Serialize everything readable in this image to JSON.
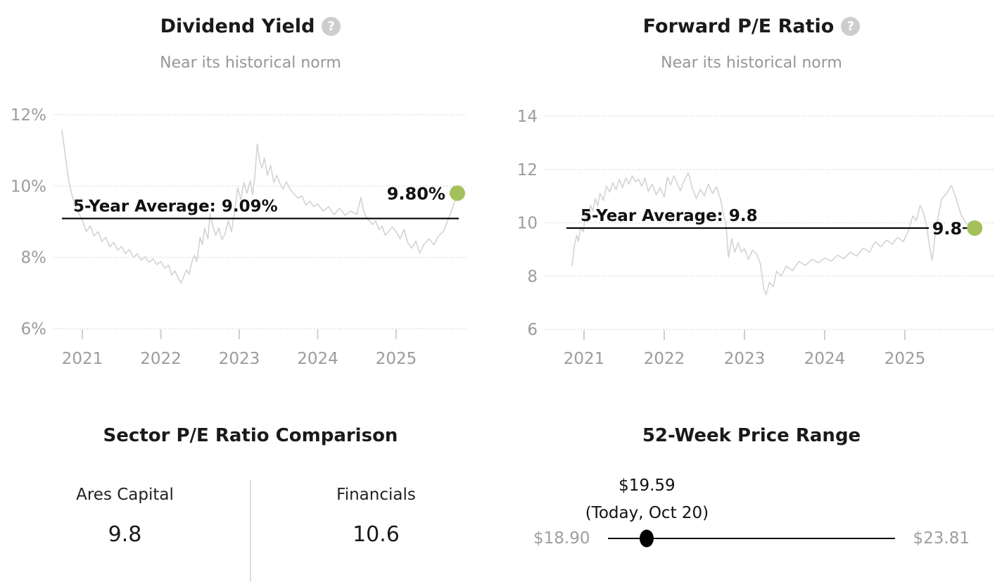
{
  "colors": {
    "accent_green": "#a4c05a",
    "series_line": "#d3d3d3",
    "grid_line": "#d7d7d7",
    "axis_label": "#9c9c9c",
    "avg_line": "#000000"
  },
  "chart_data": [
    {
      "type": "line",
      "title": "Dividend Yield",
      "subtitle": "Near its historical norm",
      "help_icon": "question-mark-icon",
      "ylim": [
        6,
        12
      ],
      "y_ticks": [
        {
          "value": 12,
          "label": "12%"
        },
        {
          "value": 10,
          "label": "10%"
        },
        {
          "value": 8,
          "label": "8%"
        },
        {
          "value": 6,
          "label": "6%"
        }
      ],
      "x_ticks": [
        2021,
        2022,
        2023,
        2024,
        2025
      ],
      "average": {
        "value": 9.09,
        "label": "5-Year Average: 9.09%"
      },
      "current": {
        "value": 9.8,
        "label": "9.80%"
      },
      "series": [
        [
          2020.74,
          11.56
        ],
        [
          2020.78,
          10.9
        ],
        [
          2020.82,
          10.25
        ],
        [
          2020.86,
          9.82
        ],
        [
          2020.9,
          9.5
        ],
        [
          2020.95,
          9.26
        ],
        [
          2021.0,
          9.06
        ],
        [
          2021.05,
          8.72
        ],
        [
          2021.1,
          8.88
        ],
        [
          2021.15,
          8.6
        ],
        [
          2021.2,
          8.72
        ],
        [
          2021.25,
          8.45
        ],
        [
          2021.3,
          8.56
        ],
        [
          2021.35,
          8.3
        ],
        [
          2021.4,
          8.42
        ],
        [
          2021.45,
          8.2
        ],
        [
          2021.5,
          8.3
        ],
        [
          2021.55,
          8.1
        ],
        [
          2021.6,
          8.22
        ],
        [
          2021.65,
          8.0
        ],
        [
          2021.7,
          8.1
        ],
        [
          2021.75,
          7.92
        ],
        [
          2021.8,
          8.02
        ],
        [
          2021.85,
          7.86
        ],
        [
          2021.9,
          7.96
        ],
        [
          2021.95,
          7.8
        ],
        [
          2022.0,
          7.88
        ],
        [
          2022.05,
          7.7
        ],
        [
          2022.1,
          7.78
        ],
        [
          2022.14,
          7.5
        ],
        [
          2022.18,
          7.62
        ],
        [
          2022.22,
          7.42
        ],
        [
          2022.26,
          7.28
        ],
        [
          2022.3,
          7.5
        ],
        [
          2022.33,
          7.65
        ],
        [
          2022.36,
          7.52
        ],
        [
          2022.4,
          7.9
        ],
        [
          2022.43,
          8.05
        ],
        [
          2022.46,
          7.88
        ],
        [
          2022.5,
          8.56
        ],
        [
          2022.53,
          8.36
        ],
        [
          2022.56,
          8.82
        ],
        [
          2022.6,
          8.52
        ],
        [
          2022.63,
          9.22
        ],
        [
          2022.66,
          8.9
        ],
        [
          2022.7,
          8.62
        ],
        [
          2022.74,
          8.82
        ],
        [
          2022.78,
          8.5
        ],
        [
          2022.82,
          8.66
        ],
        [
          2022.86,
          9.02
        ],
        [
          2022.9,
          8.72
        ],
        [
          2022.94,
          9.28
        ],
        [
          2022.98,
          9.95
        ],
        [
          2023.02,
          9.62
        ],
        [
          2023.06,
          10.1
        ],
        [
          2023.1,
          9.8
        ],
        [
          2023.14,
          10.15
        ],
        [
          2023.17,
          9.75
        ],
        [
          2023.2,
          10.3
        ],
        [
          2023.23,
          11.18
        ],
        [
          2023.26,
          10.7
        ],
        [
          2023.29,
          10.5
        ],
        [
          2023.32,
          10.78
        ],
        [
          2023.36,
          10.3
        ],
        [
          2023.4,
          10.58
        ],
        [
          2023.44,
          10.1
        ],
        [
          2023.48,
          10.3
        ],
        [
          2023.52,
          10.06
        ],
        [
          2023.56,
          9.92
        ],
        [
          2023.6,
          10.12
        ],
        [
          2023.65,
          9.9
        ],
        [
          2023.7,
          9.78
        ],
        [
          2023.75,
          9.66
        ],
        [
          2023.8,
          9.72
        ],
        [
          2023.85,
          9.46
        ],
        [
          2023.9,
          9.58
        ],
        [
          2023.95,
          9.42
        ],
        [
          2024.0,
          9.5
        ],
        [
          2024.07,
          9.3
        ],
        [
          2024.14,
          9.42
        ],
        [
          2024.21,
          9.2
        ],
        [
          2024.28,
          9.38
        ],
        [
          2024.35,
          9.18
        ],
        [
          2024.42,
          9.3
        ],
        [
          2024.5,
          9.2
        ],
        [
          2024.55,
          9.68
        ],
        [
          2024.58,
          9.35
        ],
        [
          2024.62,
          9.12
        ],
        [
          2024.66,
          9.02
        ],
        [
          2024.7,
          8.92
        ],
        [
          2024.74,
          9.02
        ],
        [
          2024.78,
          8.78
        ],
        [
          2024.82,
          8.88
        ],
        [
          2024.86,
          8.62
        ],
        [
          2024.9,
          8.72
        ],
        [
          2024.95,
          8.85
        ],
        [
          2025.0,
          8.72
        ],
        [
          2025.05,
          8.52
        ],
        [
          2025.1,
          8.78
        ],
        [
          2025.15,
          8.4
        ],
        [
          2025.2,
          8.26
        ],
        [
          2025.25,
          8.46
        ],
        [
          2025.3,
          8.12
        ],
        [
          2025.36,
          8.38
        ],
        [
          2025.42,
          8.52
        ],
        [
          2025.48,
          8.35
        ],
        [
          2025.54,
          8.6
        ],
        [
          2025.6,
          8.72
        ],
        [
          2025.66,
          9.05
        ],
        [
          2025.72,
          9.4
        ],
        [
          2025.78,
          9.8
        ]
      ]
    },
    {
      "type": "line",
      "title": "Forward P/E Ratio",
      "subtitle": "Near its historical norm",
      "help_icon": "question-mark-icon",
      "ylim": [
        6,
        14
      ],
      "y_ticks": [
        {
          "value": 14,
          "label": "14"
        },
        {
          "value": 12,
          "label": "12"
        },
        {
          "value": 10,
          "label": "10"
        },
        {
          "value": 8,
          "label": "8"
        },
        {
          "value": 6,
          "label": "6"
        }
      ],
      "x_ticks": [
        2021,
        2022,
        2023,
        2024,
        2025
      ],
      "average": {
        "value": 9.8,
        "label": "5-Year Average: 9.8"
      },
      "current": {
        "value": 9.8,
        "label": "9.8"
      },
      "series": [
        [
          2020.85,
          8.4
        ],
        [
          2020.88,
          9.13
        ],
        [
          2020.91,
          9.53
        ],
        [
          2020.93,
          9.3
        ],
        [
          2020.96,
          9.84
        ],
        [
          2020.99,
          9.66
        ],
        [
          2021.02,
          10.37
        ],
        [
          2021.05,
          10.05
        ],
        [
          2021.08,
          10.66
        ],
        [
          2021.11,
          10.45
        ],
        [
          2021.14,
          10.9
        ],
        [
          2021.17,
          10.63
        ],
        [
          2021.2,
          11.1
        ],
        [
          2021.24,
          10.84
        ],
        [
          2021.28,
          11.37
        ],
        [
          2021.32,
          11.15
        ],
        [
          2021.36,
          11.5
        ],
        [
          2021.4,
          11.24
        ],
        [
          2021.44,
          11.63
        ],
        [
          2021.48,
          11.32
        ],
        [
          2021.52,
          11.68
        ],
        [
          2021.56,
          11.45
        ],
        [
          2021.6,
          11.76
        ],
        [
          2021.64,
          11.55
        ],
        [
          2021.68,
          11.63
        ],
        [
          2021.72,
          11.37
        ],
        [
          2021.76,
          11.68
        ],
        [
          2021.8,
          11.18
        ],
        [
          2021.85,
          11.45
        ],
        [
          2021.9,
          11.05
        ],
        [
          2021.95,
          11.32
        ],
        [
          2022.0,
          10.97
        ],
        [
          2022.04,
          11.71
        ],
        [
          2022.08,
          11.42
        ],
        [
          2022.12,
          11.76
        ],
        [
          2022.16,
          11.5
        ],
        [
          2022.2,
          11.2
        ],
        [
          2022.25,
          11.6
        ],
        [
          2022.3,
          11.87
        ],
        [
          2022.35,
          11.3
        ],
        [
          2022.4,
          10.9
        ],
        [
          2022.45,
          11.26
        ],
        [
          2022.5,
          11.0
        ],
        [
          2022.55,
          11.45
        ],
        [
          2022.6,
          11.1
        ],
        [
          2022.65,
          11.35
        ],
        [
          2022.7,
          10.9
        ],
        [
          2022.74,
          10.3
        ],
        [
          2022.77,
          9.95
        ],
        [
          2022.8,
          8.7
        ],
        [
          2022.84,
          9.4
        ],
        [
          2022.88,
          8.9
        ],
        [
          2022.92,
          9.25
        ],
        [
          2022.96,
          8.9
        ],
        [
          2023.0,
          9.03
        ],
        [
          2023.05,
          8.63
        ],
        [
          2023.1,
          8.97
        ],
        [
          2023.15,
          8.84
        ],
        [
          2023.2,
          8.45
        ],
        [
          2023.24,
          7.53
        ],
        [
          2023.27,
          7.3
        ],
        [
          2023.31,
          7.76
        ],
        [
          2023.36,
          7.6
        ],
        [
          2023.4,
          8.18
        ],
        [
          2023.46,
          8.0
        ],
        [
          2023.52,
          8.37
        ],
        [
          2023.6,
          8.2
        ],
        [
          2023.68,
          8.55
        ],
        [
          2023.76,
          8.4
        ],
        [
          2023.84,
          8.63
        ],
        [
          2023.92,
          8.5
        ],
        [
          2024.0,
          8.68
        ],
        [
          2024.08,
          8.56
        ],
        [
          2024.16,
          8.78
        ],
        [
          2024.24,
          8.65
        ],
        [
          2024.32,
          8.9
        ],
        [
          2024.4,
          8.75
        ],
        [
          2024.48,
          9.05
        ],
        [
          2024.56,
          8.9
        ],
        [
          2024.63,
          9.29
        ],
        [
          2024.7,
          9.1
        ],
        [
          2024.77,
          9.35
        ],
        [
          2024.84,
          9.2
        ],
        [
          2024.91,
          9.45
        ],
        [
          2024.98,
          9.29
        ],
        [
          2025.04,
          9.68
        ],
        [
          2025.1,
          10.26
        ],
        [
          2025.14,
          10.08
        ],
        [
          2025.19,
          10.65
        ],
        [
          2025.23,
          10.38
        ],
        [
          2025.27,
          9.9
        ],
        [
          2025.31,
          9.07
        ],
        [
          2025.34,
          8.6
        ],
        [
          2025.38,
          9.6
        ],
        [
          2025.42,
          10.34
        ],
        [
          2025.46,
          10.9
        ],
        [
          2025.52,
          11.1
        ],
        [
          2025.58,
          11.4
        ],
        [
          2025.63,
          11.0
        ],
        [
          2025.7,
          10.3
        ],
        [
          2025.76,
          10.0
        ],
        [
          2025.82,
          9.85
        ],
        [
          2025.87,
          9.8
        ]
      ]
    }
  ],
  "sector_comparison": {
    "title": "Sector P/E Ratio Comparison",
    "items": [
      {
        "label": "Ares Capital",
        "value": "9.8"
      },
      {
        "label": "Financials",
        "value": "10.6"
      }
    ]
  },
  "price_range": {
    "title": "52-Week Price Range",
    "current_price": "$19.59",
    "current_note": "(Today, Oct 20)",
    "low": "$18.90",
    "high": "$23.81",
    "position_pct": 13.5
  }
}
